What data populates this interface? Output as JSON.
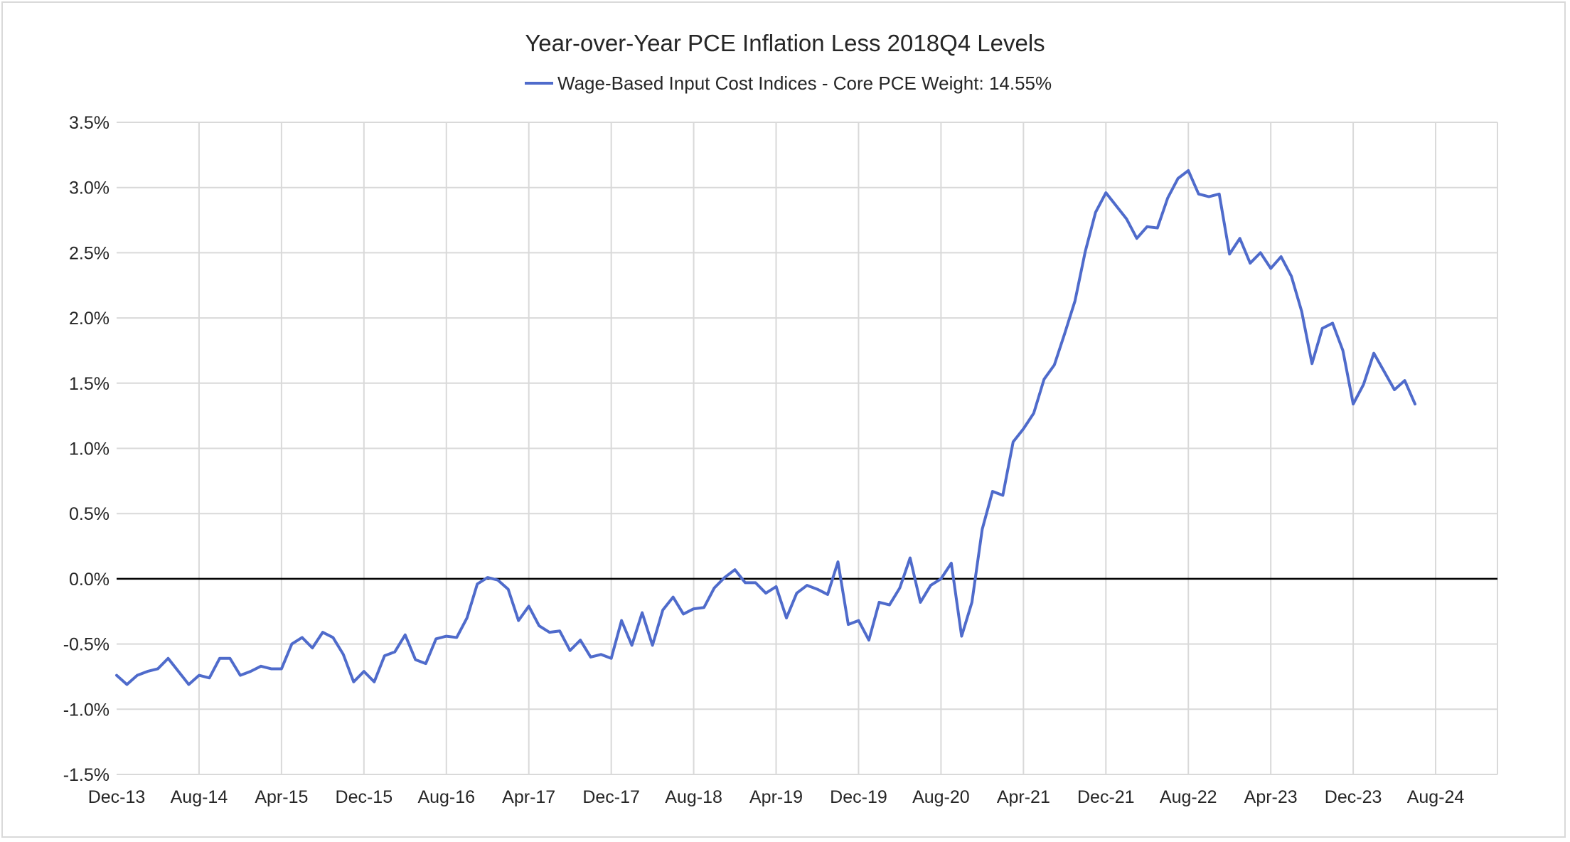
{
  "chart_data": {
    "type": "line",
    "title": "Year-over-Year PCE Inflation Less 2018Q4 Levels",
    "legend_position": "top-center",
    "grid": true,
    "series": [
      {
        "name": "Wage-Based Input Cost Indices - Core PCE Weight: 14.55%",
        "color": "#4f6bcb",
        "start": "Dec-13",
        "frequency": "monthly",
        "values": [
          -0.74,
          -0.81,
          -0.74,
          -0.71,
          -0.69,
          -0.61,
          -0.71,
          -0.81,
          -0.74,
          -0.76,
          -0.61,
          -0.61,
          -0.74,
          -0.71,
          -0.67,
          -0.69,
          -0.69,
          -0.5,
          -0.45,
          -0.53,
          -0.41,
          -0.45,
          -0.58,
          -0.79,
          -0.71,
          -0.79,
          -0.59,
          -0.56,
          -0.43,
          -0.62,
          -0.65,
          -0.46,
          -0.44,
          -0.45,
          -0.3,
          -0.04,
          0.01,
          -0.01,
          -0.08,
          -0.32,
          -0.21,
          -0.36,
          -0.41,
          -0.4,
          -0.55,
          -0.47,
          -0.6,
          -0.58,
          -0.61,
          -0.32,
          -0.51,
          -0.26,
          -0.51,
          -0.24,
          -0.14,
          -0.27,
          -0.23,
          -0.22,
          -0.07,
          0.01,
          0.07,
          -0.03,
          -0.03,
          -0.11,
          -0.06,
          -0.3,
          -0.11,
          -0.05,
          -0.08,
          -0.12,
          0.13,
          -0.35,
          -0.32,
          -0.47,
          -0.18,
          -0.2,
          -0.07,
          0.16,
          -0.18,
          -0.05,
          0.0,
          0.12,
          -0.44,
          -0.18,
          0.38,
          0.67,
          0.64,
          1.05,
          1.15,
          1.27,
          1.53,
          1.64,
          1.88,
          2.13,
          2.51,
          2.81,
          2.96,
          2.86,
          2.76,
          2.61,
          2.7,
          2.69,
          2.92,
          3.07,
          3.13,
          2.95,
          2.93,
          2.95,
          2.49,
          2.61,
          2.42,
          2.5,
          2.38,
          2.47,
          2.32,
          2.05,
          1.65,
          1.92,
          1.96,
          1.75,
          1.34,
          1.49,
          1.73,
          1.59,
          1.45,
          1.52,
          1.34
        ]
      }
    ],
    "x_tick_labels": [
      "Dec-13",
      "Aug-14",
      "Apr-15",
      "Dec-15",
      "Aug-16",
      "Apr-17",
      "Dec-17",
      "Aug-18",
      "Apr-19",
      "Dec-19",
      "Aug-20",
      "Apr-21",
      "Dec-21",
      "Aug-22",
      "Apr-23",
      "Dec-23",
      "Aug-24"
    ],
    "x_tick_step_months": 8,
    "y_ticks": [
      3.5,
      3.0,
      2.5,
      2.0,
      1.5,
      1.0,
      0.5,
      0.0,
      -0.5,
      -1.0,
      -1.5
    ],
    "y_tick_labels": [
      "3.5%",
      "3.0%",
      "2.5%",
      "2.0%",
      "1.5%",
      "1.0%",
      "0.5%",
      "0.0%",
      "-0.5%",
      "-1.0%",
      "-1.5%"
    ],
    "ylim": [
      -1.5,
      3.5
    ],
    "xlim_months": [
      0,
      134
    ],
    "ylabel": "",
    "xlabel": ""
  }
}
